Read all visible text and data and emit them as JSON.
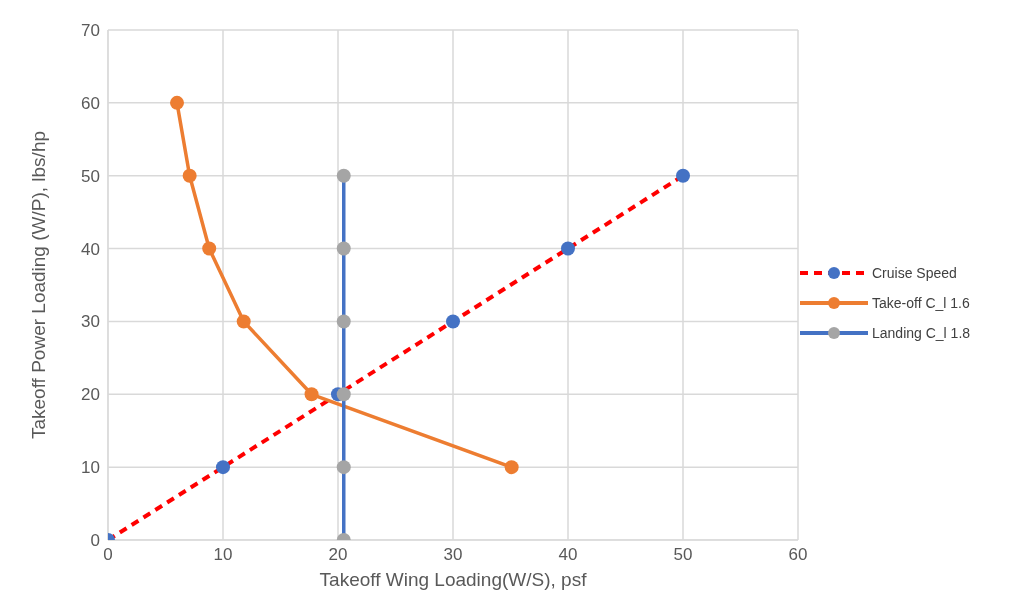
{
  "chart_data": {
    "type": "line",
    "xlabel": "Takeoff Wing Loading(W/S), psf",
    "ylabel": "Takeoff Power Loading (W/P), lbs/hp",
    "series": [
      {
        "name": "Cruise Speed",
        "color": "#ff0000",
        "colors": [
          "#4472c4",
          "#4472c4",
          "#4472c4",
          "#4472c4",
          "#4472c4",
          "#4472c4"
        ],
        "line_style": "dashed",
        "x": [
          0,
          10,
          20,
          30,
          40,
          50
        ],
        "values": [
          0,
          10,
          20,
          30,
          40,
          50
        ]
      },
      {
        "name": "Take-off C_l 1.6",
        "color": "#ed7d31",
        "line_style": "solid",
        "x": [
          6.0,
          7.1,
          8.8,
          11.8,
          17.7,
          35.1
        ],
        "values": [
          60,
          50,
          40,
          30,
          20,
          10
        ]
      },
      {
        "name": "Landing C_l 1.8",
        "color": "#4472c4",
        "colors": [
          "#a5a5a5",
          "#a5a5a5",
          "#a5a5a5",
          "#a5a5a5",
          "#a5a5a5",
          "#a5a5a5"
        ],
        "line_style": "solid",
        "x": [
          20.5,
          20.5,
          20.5,
          20.5,
          20.5,
          20.5
        ],
        "values": [
          0,
          10,
          20,
          30,
          40,
          50
        ]
      }
    ],
    "xlim": [
      0,
      60
    ],
    "xticks": [
      0,
      10,
      20,
      30,
      40,
      50,
      60
    ],
    "ylim": [
      0,
      70
    ],
    "yticks": [
      0,
      10,
      20,
      30,
      40,
      50,
      60,
      70
    ],
    "grid": true,
    "legend": "right",
    "marker": "circle"
  }
}
